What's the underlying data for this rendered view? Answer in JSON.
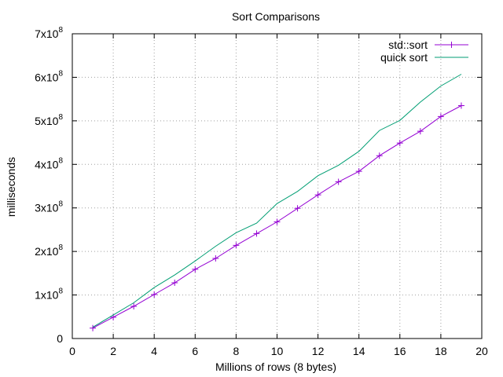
{
  "chart_data": {
    "type": "line",
    "title": "Sort Comparisons",
    "xlabel": "Millions of rows (8 bytes)",
    "ylabel": "milliseconds",
    "xlim": [
      0,
      20
    ],
    "ylim": [
      0,
      700000000
    ],
    "x_ticks": [
      0,
      2,
      4,
      6,
      8,
      10,
      12,
      14,
      16,
      18,
      20
    ],
    "y_ticks": [
      {
        "value": 0,
        "base": "0",
        "exp": ""
      },
      {
        "value": 100000000,
        "base": "1x10",
        "exp": "8"
      },
      {
        "value": 200000000,
        "base": "2x10",
        "exp": "8"
      },
      {
        "value": 300000000,
        "base": "3x10",
        "exp": "8"
      },
      {
        "value": 400000000,
        "base": "4x10",
        "exp": "8"
      },
      {
        "value": 500000000,
        "base": "5x10",
        "exp": "8"
      },
      {
        "value": 600000000,
        "base": "6x10",
        "exp": "8"
      },
      {
        "value": 700000000,
        "base": "7x10",
        "exp": "8"
      }
    ],
    "grid": true,
    "legend_position": "top-right",
    "series": [
      {
        "name": "std::sort",
        "color": "#9400d3",
        "marker": "plus",
        "x": [
          1,
          2,
          3,
          4,
          5,
          6,
          7,
          8,
          9,
          10,
          11,
          12,
          13,
          14,
          15,
          16,
          17,
          18,
          19
        ],
        "values": [
          24000000,
          49000000,
          74000000,
          101000000,
          128000000,
          159000000,
          184000000,
          214000000,
          241000000,
          268000000,
          299000000,
          330000000,
          360000000,
          384000000,
          420000000,
          449000000,
          476000000,
          510000000,
          535000000
        ]
      },
      {
        "name": "quick sort",
        "color": "#009e73",
        "marker": "none",
        "x": [
          1,
          2,
          3,
          4,
          5,
          6,
          7,
          8,
          9,
          10,
          11,
          12,
          13,
          14,
          15,
          16,
          17,
          18,
          19
        ],
        "values": [
          26000000,
          54000000,
          82000000,
          117000000,
          146000000,
          178000000,
          212000000,
          243000000,
          265000000,
          310000000,
          338000000,
          374000000,
          398000000,
          430000000,
          478000000,
          501000000,
          543000000,
          580000000,
          607000000
        ]
      }
    ]
  }
}
